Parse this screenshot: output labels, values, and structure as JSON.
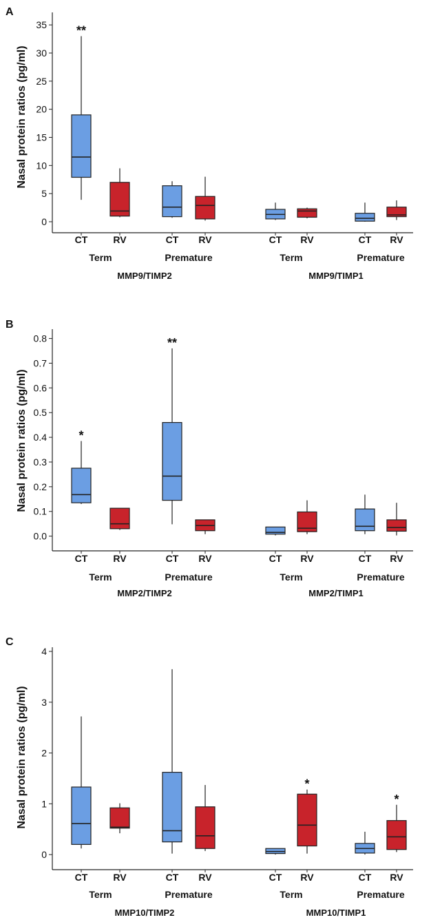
{
  "colors": {
    "CT": "#6b9ee3",
    "RV": "#c8232b",
    "axis": "#222222"
  },
  "chart_data": [
    {
      "type": "boxplot",
      "panel": "A",
      "ylabel": "Nasal protein ratios (pg/ml)",
      "ylim": [
        0,
        36
      ],
      "yticks": [
        0,
        5,
        10,
        15,
        20,
        25,
        30,
        35
      ],
      "ytick_labels": [
        "0",
        "5",
        "10",
        "15",
        "20",
        "25",
        "30",
        "35"
      ],
      "groups": [
        {
          "ratio": "MMP9/TIMP2",
          "age": "Term",
          "boxes": [
            {
              "condition": "CT",
              "whisker_low": 3.9,
              "q1": 7.9,
              "median": 11.5,
              "q3": 19.0,
              "whisker_high": 33.0,
              "sig": "**"
            },
            {
              "condition": "RV",
              "whisker_low": 0.8,
              "q1": 1.0,
              "median": 1.9,
              "q3": 7.0,
              "whisker_high": 9.5,
              "sig": ""
            }
          ]
        },
        {
          "ratio": "MMP9/TIMP2",
          "age": "Premature",
          "boxes": [
            {
              "condition": "CT",
              "whisker_low": 0.7,
              "q1": 0.9,
              "median": 2.6,
              "q3": 6.4,
              "whisker_high": 7.2,
              "sig": ""
            },
            {
              "condition": "RV",
              "whisker_low": 0.2,
              "q1": 0.5,
              "median": 2.9,
              "q3": 4.5,
              "whisker_high": 8.0,
              "sig": ""
            }
          ]
        },
        {
          "ratio": "MMP9/TIMP1",
          "age": "Term",
          "boxes": [
            {
              "condition": "CT",
              "whisker_low": 0.3,
              "q1": 0.5,
              "median": 1.3,
              "q3": 2.2,
              "whisker_high": 3.4,
              "sig": ""
            },
            {
              "condition": "RV",
              "whisker_low": 0.6,
              "q1": 0.8,
              "median": 1.9,
              "q3": 2.3,
              "whisker_high": 2.5,
              "sig": ""
            }
          ]
        },
        {
          "ratio": "MMP9/TIMP1",
          "age": "Premature",
          "boxes": [
            {
              "condition": "CT",
              "whisker_low": 0.0,
              "q1": 0.1,
              "median": 0.6,
              "q3": 1.5,
              "whisker_high": 3.4,
              "sig": ""
            },
            {
              "condition": "RV",
              "whisker_low": 0.3,
              "q1": 0.9,
              "median": 1.2,
              "q3": 2.6,
              "whisker_high": 3.8,
              "sig": ""
            }
          ]
        }
      ],
      "ratio_labels": [
        "MMP9/TIMP2",
        "MMP9/TIMP1"
      ]
    },
    {
      "type": "boxplot",
      "panel": "B",
      "ylabel": "Nasal protein ratios (pg/ml)",
      "ylim": [
        -0.015,
        0.81
      ],
      "yticks": [
        0,
        0.1,
        0.2,
        0.3,
        0.4,
        0.5,
        0.6,
        0.7,
        0.8
      ],
      "ytick_labels": [
        "0.0",
        "0.1",
        "0.2",
        "0.3",
        "0.4",
        "0.5",
        "0.6",
        "0.7",
        "0.8"
      ],
      "groups": [
        {
          "ratio": "MMP2/TIMP2",
          "age": "Term",
          "boxes": [
            {
              "condition": "CT",
              "whisker_low": 0.13,
              "q1": 0.135,
              "median": 0.168,
              "q3": 0.275,
              "whisker_high": 0.385,
              "sig": "*"
            },
            {
              "condition": "RV",
              "whisker_low": 0.025,
              "q1": 0.03,
              "median": 0.05,
              "q3": 0.113,
              "whisker_high": 0.113,
              "sig": ""
            }
          ]
        },
        {
          "ratio": "MMP2/TIMP2",
          "age": "Premature",
          "boxes": [
            {
              "condition": "CT",
              "whisker_low": 0.048,
              "q1": 0.145,
              "median": 0.243,
              "q3": 0.46,
              "whisker_high": 0.76,
              "sig": "**"
            },
            {
              "condition": "RV",
              "whisker_low": 0.008,
              "q1": 0.022,
              "median": 0.043,
              "q3": 0.066,
              "whisker_high": 0.066,
              "sig": ""
            }
          ]
        },
        {
          "ratio": "MMP2/TIMP1",
          "age": "Term",
          "boxes": [
            {
              "condition": "CT",
              "whisker_low": 0.003,
              "q1": 0.008,
              "median": 0.015,
              "q3": 0.037,
              "whisker_high": 0.037,
              "sig": ""
            },
            {
              "condition": "RV",
              "whisker_low": 0.008,
              "q1": 0.018,
              "median": 0.032,
              "q3": 0.098,
              "whisker_high": 0.145,
              "sig": ""
            }
          ]
        },
        {
          "ratio": "MMP2/TIMP1",
          "age": "Premature",
          "boxes": [
            {
              "condition": "CT",
              "whisker_low": 0.008,
              "q1": 0.022,
              "median": 0.04,
              "q3": 0.11,
              "whisker_high": 0.168,
              "sig": ""
            },
            {
              "condition": "RV",
              "whisker_low": 0.003,
              "q1": 0.02,
              "median": 0.035,
              "q3": 0.066,
              "whisker_high": 0.135,
              "sig": ""
            }
          ]
        }
      ],
      "ratio_labels": [
        "MMP2/TIMP2",
        "MMP2/TIMP1"
      ]
    },
    {
      "type": "boxplot",
      "panel": "C",
      "ylabel": "Nasal protein ratios (pg/ml)",
      "ylim": [
        -0.08,
        4.0
      ],
      "yticks": [
        0,
        1,
        2,
        3,
        4
      ],
      "ytick_labels": [
        "0",
        "1",
        "2",
        "3",
        "4"
      ],
      "groups": [
        {
          "ratio": "MMP10/TIMP2",
          "age": "Term",
          "boxes": [
            {
              "condition": "CT",
              "whisker_low": 0.12,
              "q1": 0.2,
              "median": 0.61,
              "q3": 1.33,
              "whisker_high": 2.72,
              "sig": ""
            },
            {
              "condition": "RV",
              "whisker_low": 0.42,
              "q1": 0.52,
              "median": 0.54,
              "q3": 0.92,
              "whisker_high": 1.01,
              "sig": ""
            }
          ]
        },
        {
          "ratio": "MMP10/TIMP2",
          "age": "Premature",
          "boxes": [
            {
              "condition": "CT",
              "whisker_low": 0.02,
              "q1": 0.25,
              "median": 0.47,
              "q3": 1.62,
              "whisker_high": 3.65,
              "sig": ""
            },
            {
              "condition": "RV",
              "whisker_low": 0.07,
              "q1": 0.12,
              "median": 0.37,
              "q3": 0.94,
              "whisker_high": 1.37,
              "sig": ""
            }
          ]
        },
        {
          "ratio": "MMP10/TIMP1",
          "age": "Term",
          "boxes": [
            {
              "condition": "CT",
              "whisker_low": 0.0,
              "q1": 0.02,
              "median": 0.06,
              "q3": 0.12,
              "whisker_high": 0.12,
              "sig": ""
            },
            {
              "condition": "RV",
              "whisker_low": 0.02,
              "q1": 0.17,
              "median": 0.58,
              "q3": 1.19,
              "whisker_high": 1.28,
              "sig": "*"
            }
          ]
        },
        {
          "ratio": "MMP10/TIMP1",
          "age": "Premature",
          "boxes": [
            {
              "condition": "CT",
              "whisker_low": 0.0,
              "q1": 0.03,
              "median": 0.12,
              "q3": 0.22,
              "whisker_high": 0.45,
              "sig": ""
            },
            {
              "condition": "RV",
              "whisker_low": 0.05,
              "q1": 0.1,
              "median": 0.35,
              "q3": 0.67,
              "whisker_high": 0.98,
              "sig": "*"
            }
          ]
        }
      ],
      "ratio_labels": [
        "MMP10/TIMP2",
        "MMP10/TIMP1"
      ]
    }
  ]
}
